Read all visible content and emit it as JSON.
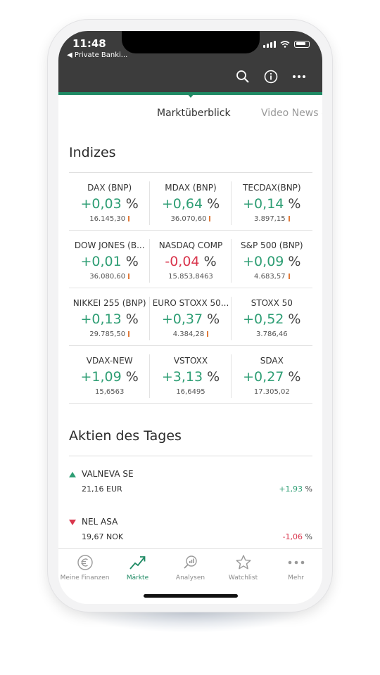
{
  "status": {
    "time": "11:48",
    "back_label": "◀ Private Banki..."
  },
  "toolbar": {
    "icons": [
      "search-icon",
      "info-icon",
      "more-icon"
    ]
  },
  "tabs": [
    {
      "label": "Marktüberblick",
      "active": true
    },
    {
      "label": "Video News &",
      "active": false
    }
  ],
  "indizes": {
    "title": "Indizes",
    "rows": [
      [
        {
          "name": "DAX (BNP)",
          "change_sign": "+0,03",
          "unit": "%",
          "direction": "pos",
          "price": "16.145,30",
          "tick": true
        },
        {
          "name": "MDAX (BNP)",
          "change_sign": "+0,64",
          "unit": "%",
          "direction": "pos",
          "price": "36.070,60",
          "tick": true
        },
        {
          "name": "TECDAX(BNP)",
          "change_sign": "+0,14",
          "unit": "%",
          "direction": "pos",
          "price": "3.897,15",
          "tick": true
        }
      ],
      [
        {
          "name": "DOW JONES (B...",
          "change_sign": "+0,01",
          "unit": "%",
          "direction": "pos",
          "price": "36.080,60",
          "tick": true
        },
        {
          "name": "NASDAQ COMP",
          "change_sign": "-0,04",
          "unit": "%",
          "direction": "neg",
          "price": "15.853,8463",
          "tick": false
        },
        {
          "name": "S&P 500 (BNP)",
          "change_sign": "+0,09",
          "unit": "%",
          "direction": "pos",
          "price": "4.683,57",
          "tick": true
        }
      ],
      [
        {
          "name": "NIKKEI 255 (BNP)",
          "change_sign": "+0,13",
          "unit": "%",
          "direction": "pos",
          "price": "29.785,50",
          "tick": true
        },
        {
          "name": "EURO STOXX 50...",
          "change_sign": "+0,37",
          "unit": "%",
          "direction": "pos",
          "price": "4.384,28",
          "tick": true
        },
        {
          "name": "STOXX 50",
          "change_sign": "+0,52",
          "unit": "%",
          "direction": "pos",
          "price": "3.786,46",
          "tick": false
        }
      ],
      [
        {
          "name": "VDAX-NEW",
          "change_sign": "+1,09",
          "unit": "%",
          "direction": "pos",
          "price": "15,6563",
          "tick": false
        },
        {
          "name": "VSTOXX",
          "change_sign": "+3,13",
          "unit": "%",
          "direction": "pos",
          "price": "16,6495",
          "tick": false
        },
        {
          "name": "SDAX",
          "change_sign": "+0,27",
          "unit": "%",
          "direction": "pos",
          "price": "17.305,02",
          "tick": false
        }
      ]
    ]
  },
  "aktien": {
    "title": "Aktien des Tages",
    "items": [
      {
        "name": "VALNEVA SE",
        "price": "21,16 EUR",
        "change": "+1,93",
        "unit": "%",
        "direction": "up"
      },
      {
        "name": "NEL ASA",
        "price": "19,67 NOK",
        "change": "-1,06",
        "unit": "%",
        "direction": "down"
      }
    ]
  },
  "nav": [
    {
      "label": "Meine Finanzen",
      "icon": "euro-icon",
      "active": false
    },
    {
      "label": "Märkte",
      "icon": "trend-chart-icon",
      "active": true
    },
    {
      "label": "Analysen",
      "icon": "magnifier-chart-icon",
      "active": false
    },
    {
      "label": "Watchlist",
      "icon": "star-icon",
      "active": false
    },
    {
      "label": "Mehr",
      "icon": "more-dots-icon",
      "active": false
    }
  ],
  "colors": {
    "accent": "#1f8a64",
    "positive": "#2e9e74",
    "negative": "#d9364d",
    "header": "#3c3c3c"
  }
}
